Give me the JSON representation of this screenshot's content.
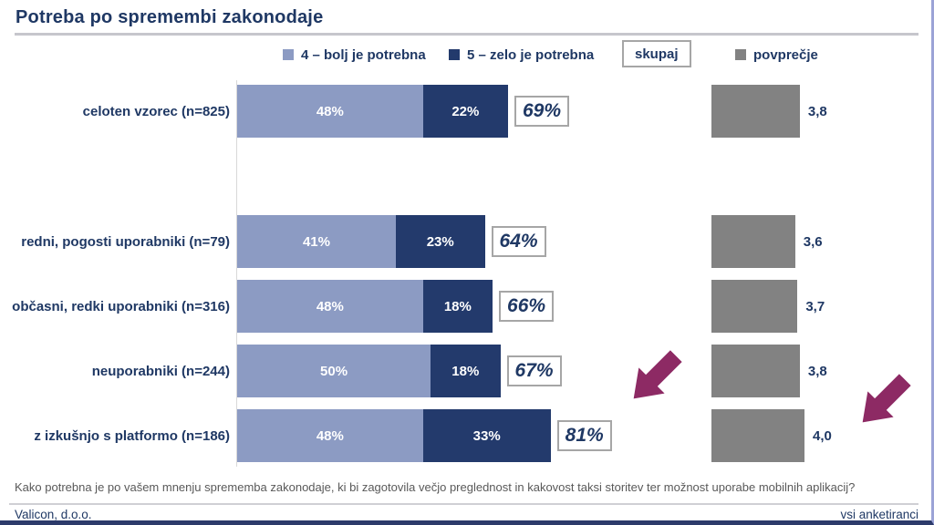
{
  "title": "Potreba po spremembi zakonodaje",
  "legend": {
    "series_4_label": "4 – bolj je potrebna",
    "series_5_label": "5 – zelo je potrebna",
    "skupaj_label": "skupaj",
    "povprecje_label": "povprečje"
  },
  "colors": {
    "series_4": "#8C9BC3",
    "series_5": "#233A6C",
    "average_bar": "#828282",
    "navy_text": "#1F3864",
    "arrow_accent": "#8D2A64"
  },
  "chart_data": {
    "type": "bar",
    "orientation": "horizontal-stacked",
    "title": "Potreba po spremembi zakonodaje",
    "categories": [
      "celoten vzorec (n=825)",
      "redni, pogosti uporabniki (n=79)",
      "občasni, redki uporabniki (n=316)",
      "neuporabniki (n=244)",
      "z izkušnjo s platformo (n=186)"
    ],
    "series": [
      {
        "name": "4 – bolj je potrebna",
        "values": [
          48,
          41,
          48,
          50,
          48
        ]
      },
      {
        "name": "5 – zelo je potrebna",
        "values": [
          22,
          23,
          18,
          18,
          33
        ]
      }
    ],
    "totals_pct": [
      69,
      64,
      66,
      67,
      81
    ],
    "averages": [
      3.8,
      3.6,
      3.7,
      3.8,
      4.0
    ],
    "x_unit": "%",
    "legend_position": "top",
    "grid": false
  },
  "rows": [
    {
      "label": "celoten vzorec (n=825)",
      "pct4": 48,
      "pct5": 22,
      "pct4_label": "48%",
      "pct5_label": "22%",
      "total_label": "69%",
      "avg": 3.8,
      "avg_label": "3,8"
    },
    {
      "label": "redni, pogosti uporabniki (n=79)",
      "pct4": 41,
      "pct5": 23,
      "pct4_label": "41%",
      "pct5_label": "23%",
      "total_label": "64%",
      "avg": 3.6,
      "avg_label": "3,6"
    },
    {
      "label": "občasni, redki uporabniki (n=316)",
      "pct4": 48,
      "pct5": 18,
      "pct4_label": "48%",
      "pct5_label": "18%",
      "total_label": "66%",
      "avg": 3.7,
      "avg_label": "3,7"
    },
    {
      "label": "neuporabniki (n=244)",
      "pct4": 50,
      "pct5": 18,
      "pct4_label": "50%",
      "pct5_label": "18%",
      "total_label": "67%",
      "avg": 3.8,
      "avg_label": "3,8"
    },
    {
      "label": "z izkušnjo s platformo (n=186)",
      "pct4": 48,
      "pct5": 33,
      "pct4_label": "48%",
      "pct5_label": "33%",
      "total_label": "81%",
      "avg": 4.0,
      "avg_label": "4,0"
    }
  ],
  "footer": {
    "question": "Kako potrebna je po vašem mnenju sprememba zakonodaje, ki bi zagotovila večjo preglednost in kakovost taksi storitev ter možnost uporabe mobilnih aplikacij?",
    "source": "Valicon, d.o.o.",
    "sample": "vsi anketiranci"
  }
}
